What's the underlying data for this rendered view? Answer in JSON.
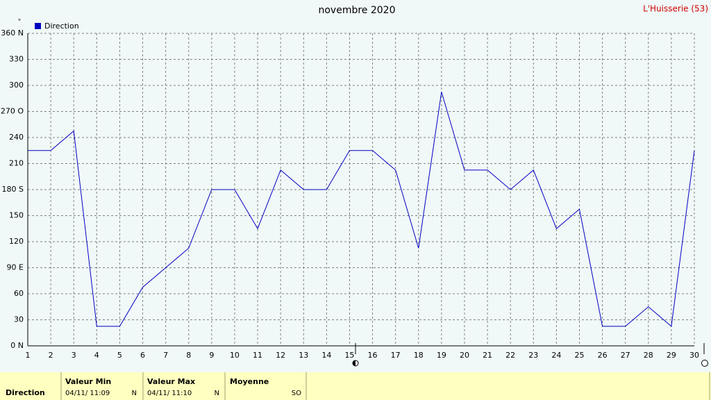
{
  "chart_data": {
    "type": "line",
    "title": "novembre 2020",
    "location": "L'Huisserie (53)",
    "y_unit": "°",
    "x": [
      1,
      2,
      3,
      4,
      5,
      6,
      7,
      8,
      9,
      10,
      11,
      12,
      13,
      14,
      15,
      16,
      17,
      18,
      19,
      20,
      21,
      22,
      23,
      24,
      25,
      26,
      27,
      28,
      29,
      30
    ],
    "series": [
      {
        "name": "Direction",
        "color": "#0000c0",
        "values": [
          225,
          225,
          247.5,
          22.5,
          22.5,
          67.5,
          90,
          112.5,
          180,
          180,
          135,
          202.5,
          180,
          180,
          225,
          225,
          202.5,
          112.5,
          292.5,
          202.5,
          202.5,
          180,
          202.5,
          135,
          157.5,
          22.5,
          22.5,
          45,
          22.5,
          225
        ]
      }
    ],
    "xlim": [
      1,
      30
    ],
    "xticks": [
      1,
      2,
      3,
      4,
      5,
      6,
      7,
      8,
      9,
      10,
      11,
      12,
      13,
      14,
      15,
      16,
      17,
      18,
      19,
      20,
      21,
      22,
      23,
      24,
      25,
      26,
      27,
      28,
      29,
      30
    ],
    "ylim": [
      0,
      360
    ],
    "yticks": [
      {
        "value": 0,
        "label": "0  N"
      },
      30,
      60,
      {
        "value": 90,
        "label": "90  E"
      },
      120,
      150,
      {
        "value": 180,
        "label": "180 S"
      },
      210,
      240,
      {
        "value": 270,
        "label": "270 O"
      },
      300,
      330,
      {
        "value": 360,
        "label": "360 N"
      }
    ],
    "grid": true
  },
  "summary": {
    "row_label": "Direction",
    "min": {
      "title": "Valeur Min",
      "time": "04/11/  11:09",
      "value": "N"
    },
    "max": {
      "title": "Valeur Max",
      "time": "04/11/  11:10",
      "value": "N"
    },
    "mean": {
      "title": "Moyenne",
      "value": "SO"
    }
  }
}
